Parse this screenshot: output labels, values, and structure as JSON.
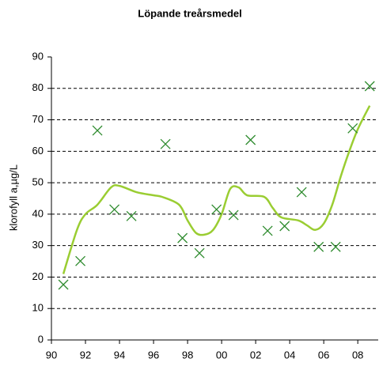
{
  "chart_data": {
    "type": "scatter",
    "title": "Löpande treårsmedel",
    "y_label": "klorofyll a,µg/L",
    "x": [
      1990.7,
      1991.7,
      1992.7,
      1993.7,
      1994.7,
      1996.7,
      1997.7,
      1998.7,
      1999.7,
      2000.7,
      2001.7,
      2002.7,
      2003.7,
      2004.7,
      2005.7,
      2006.7,
      2007.7,
      2008.7
    ],
    "values": [
      17.6,
      25.1,
      66.6,
      41.5,
      39.4,
      62.3,
      32.4,
      27.6,
      41.5,
      39.7,
      63.6,
      34.7,
      36.2,
      47,
      29.6,
      29.6,
      67.3,
      80.7
    ],
    "color": "#2e8b2e",
    "line": {
      "x": [
        1990.7,
        1991.5,
        1992,
        1992.7,
        1993.5,
        1994,
        1995,
        1996,
        1996.5,
        1997.5,
        1998,
        1998.5,
        1999,
        1999.5,
        2000,
        2000.5,
        2001,
        2001.5,
        2002.5,
        2003,
        2003.5,
        2004.5,
        2005,
        2005.5,
        2006,
        2006.5,
        2007,
        2007.5,
        2008,
        2008.7
      ],
      "values": [
        21,
        35,
        40,
        43,
        48.5,
        49,
        47,
        46,
        45.5,
        43,
        38,
        34,
        33.5,
        35,
        40,
        48,
        48.5,
        46,
        45.5,
        42,
        39,
        38,
        36.5,
        35,
        37,
        43,
        52,
        60,
        67,
        74.5
      ],
      "color": "#9acd32"
    },
    "xlim": [
      1990,
      2009.2
    ],
    "xticks": [
      {
        "value": 1990,
        "label": "90"
      },
      {
        "value": 1992,
        "label": "92"
      },
      {
        "value": 1994,
        "label": "94"
      },
      {
        "value": 1996,
        "label": "96"
      },
      {
        "value": 1998,
        "label": "98"
      },
      {
        "value": 2000,
        "label": "00"
      },
      {
        "value": 2002,
        "label": "02"
      },
      {
        "value": 2004,
        "label": "04"
      },
      {
        "value": 2006,
        "label": "06"
      },
      {
        "value": 2008,
        "label": "08"
      }
    ],
    "ylim": [
      0,
      90
    ],
    "yticks": [
      0,
      10,
      20,
      30,
      40,
      50,
      60,
      70,
      80,
      90
    ],
    "grid": true
  }
}
